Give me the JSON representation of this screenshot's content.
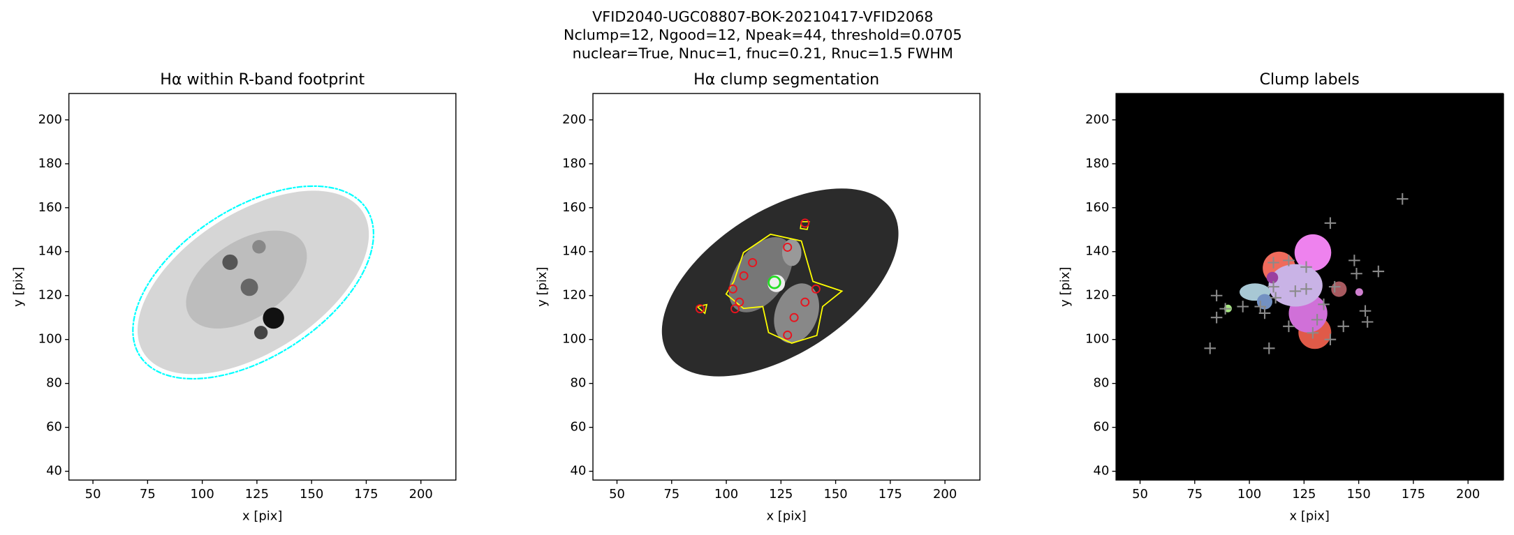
{
  "title_lines": [
    "VFID2040-UGC08807-BOK-20210417-VFID2068",
    "Nclump=12, Ngood=12, Npeak=44, threshold=0.0705",
    "nuclear=True, Nnuc=1, fnuc=0.21, Rnuc=1.5 FWHM"
  ],
  "chart_data": [
    {
      "type": "image",
      "title": "Hα within R-band footprint",
      "xlabel": "x [pix]",
      "ylabel": "y [pix]",
      "xlim": [
        39,
        216
      ],
      "ylim": [
        36,
        212
      ],
      "xticks": [
        50,
        75,
        100,
        125,
        150,
        175,
        200
      ],
      "yticks": [
        40,
        60,
        80,
        100,
        120,
        140,
        160,
        180,
        200
      ]
    },
    {
      "type": "image",
      "title": "Hα clump segmentation",
      "xlabel": "x [pix]",
      "ylabel": "y [pix]",
      "xlim": [
        39,
        216
      ],
      "ylim": [
        36,
        212
      ],
      "xticks": [
        50,
        75,
        100,
        125,
        150,
        175,
        200
      ],
      "yticks": [
        40,
        60,
        80,
        100,
        120,
        140,
        160,
        180,
        200
      ],
      "peaks": {
        "color": "#e8141e",
        "x": [
          112,
          108,
          103,
          106,
          128,
          136,
          141,
          136,
          131,
          128,
          88,
          104
        ],
        "y": [
          135,
          129,
          123,
          117,
          142,
          153,
          123,
          117,
          110,
          102,
          114,
          114
        ]
      },
      "nucleus": {
        "color": "#22dd22",
        "x": [
          122
        ],
        "y": [
          126
        ]
      }
    },
    {
      "type": "image",
      "title": "Clump labels",
      "xlabel": "x [pix]",
      "ylabel": "y [pix]",
      "xlim": [
        39,
        216
      ],
      "ylim": [
        36,
        212
      ],
      "xticks": [
        50,
        75,
        100,
        125,
        150,
        175,
        200
      ],
      "yticks": [
        40,
        60,
        80,
        100,
        120,
        140,
        160,
        180,
        200
      ],
      "crosses": {
        "color": "#8a8a8a",
        "x": [
          170,
          82,
          109,
          137,
          148,
          159,
          149,
          85,
          85,
          97,
          89,
          105,
          111,
          118,
          126,
          126,
          111,
          121,
          139,
          134,
          131,
          143,
          107,
          118,
          129,
          137,
          153,
          154,
          112
        ],
        "y": [
          164,
          96,
          96,
          153,
          136,
          131,
          130,
          120,
          110,
          115,
          114,
          115,
          135,
          136,
          133,
          123,
          124,
          122,
          124,
          116,
          109,
          106,
          112,
          106,
          103,
          100,
          113,
          108,
          119
        ]
      }
    }
  ]
}
